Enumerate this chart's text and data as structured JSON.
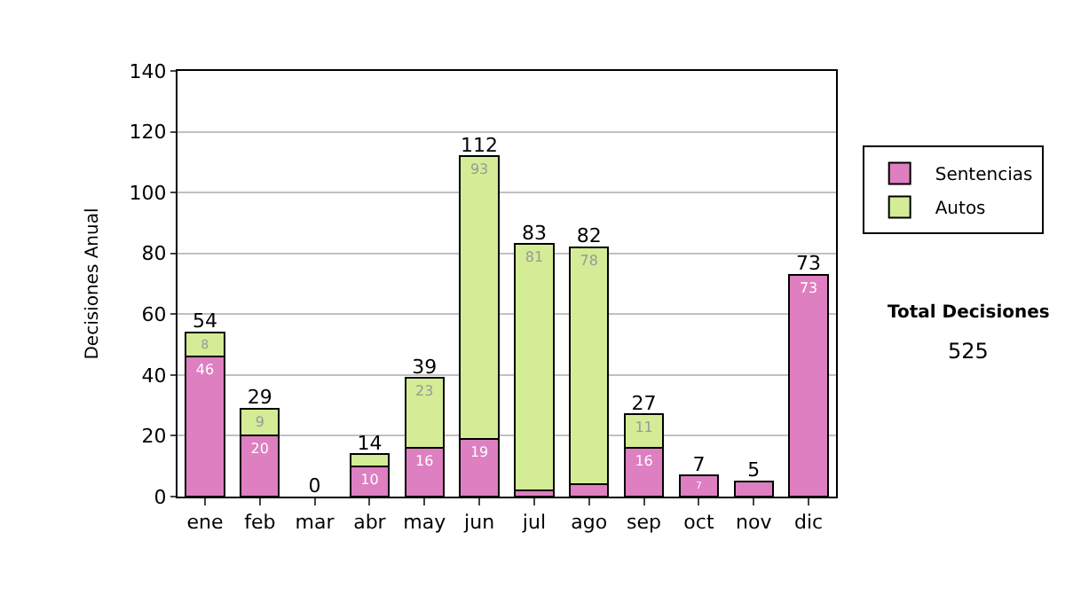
{
  "chart_data": {
    "type": "bar",
    "stacked": true,
    "ylabel": "Decisiones Anual",
    "categories": [
      "ene",
      "feb",
      "mar",
      "abr",
      "may",
      "jun",
      "jul",
      "ago",
      "sep",
      "oct",
      "nov",
      "dic"
    ],
    "series": [
      {
        "name": "Sentencias",
        "color": "#dd7fc0",
        "values": [
          46,
          20,
          0,
          10,
          16,
          19,
          2,
          4,
          16,
          7,
          5,
          73
        ],
        "value_labels": [
          "46",
          "20",
          null,
          "10",
          "16",
          "19",
          null,
          null,
          "16",
          "7",
          null,
          "73"
        ]
      },
      {
        "name": "Autos",
        "color": "#d4ec96",
        "values": [
          8,
          9,
          0,
          4,
          23,
          93,
          81,
          78,
          11,
          0,
          0,
          0
        ],
        "value_labels": [
          "8",
          "9",
          null,
          null,
          "23",
          "93",
          "81",
          "78",
          "11",
          null,
          null,
          null
        ]
      }
    ],
    "totals": [
      "54",
      "29",
      "0",
      "14",
      "39",
      "112",
      "83",
      "82",
      "27",
      "7",
      "5",
      "73"
    ],
    "ylim": [
      0,
      140
    ],
    "yticks": [
      0,
      20,
      40,
      60,
      80,
      100,
      120,
      140
    ],
    "grid": "y",
    "legend": "right",
    "annotations": [
      "Total Decisiones",
      "525"
    ]
  }
}
